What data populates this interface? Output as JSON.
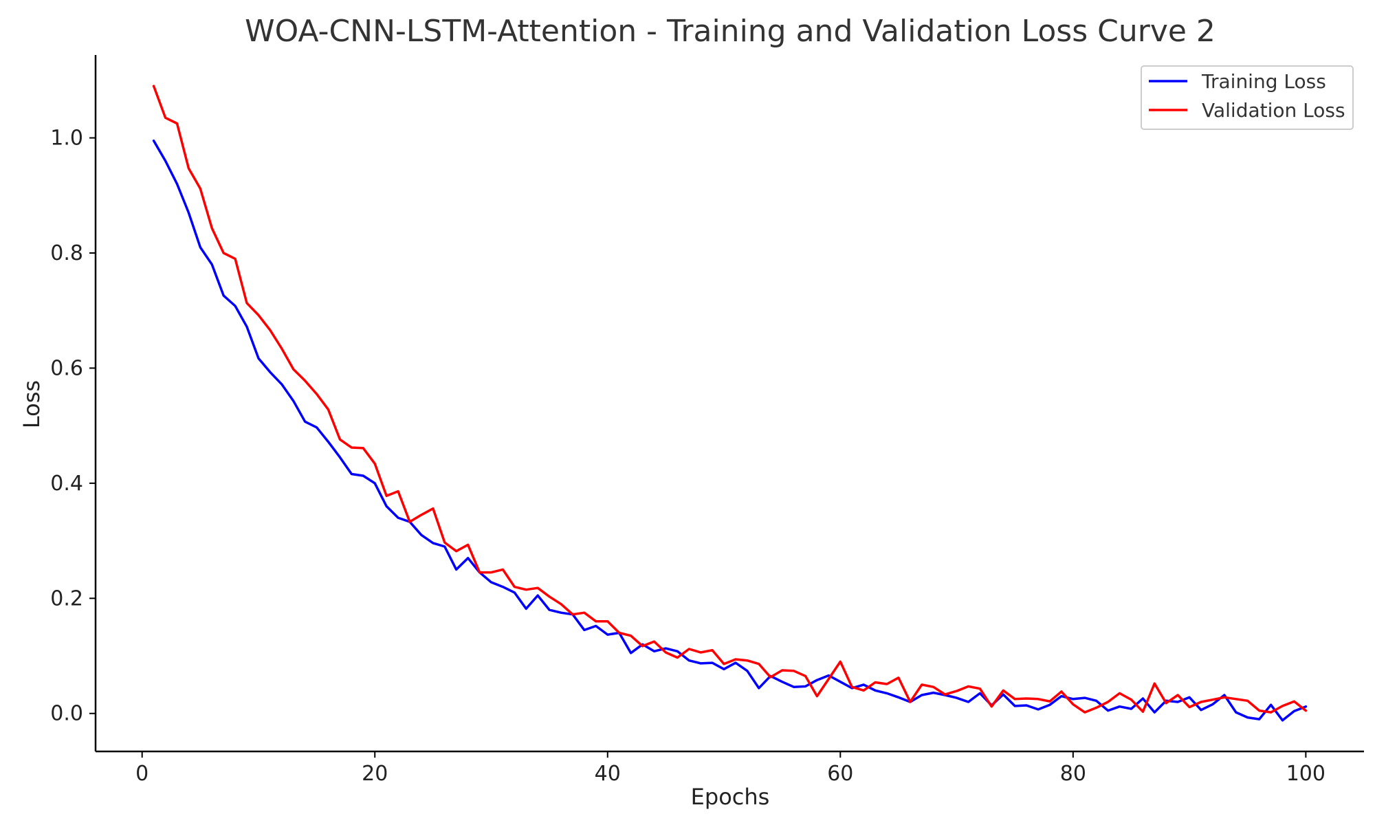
{
  "chart_data": {
    "type": "line",
    "title": "WOA-CNN-LSTM-Attention - Training and Validation Loss Curve 2",
    "xlabel": "Epochs",
    "ylabel": "Loss",
    "xlim": [
      -4,
      105
    ],
    "ylim": [
      -0.066,
      1.144
    ],
    "xticks": [
      0,
      20,
      40,
      60,
      80,
      100
    ],
    "xtick_labels": [
      "0",
      "20",
      "40",
      "60",
      "80",
      "100"
    ],
    "yticks": [
      0.0,
      0.2,
      0.4,
      0.6,
      0.8,
      1.0
    ],
    "ytick_labels": [
      "0.0",
      "0.2",
      "0.4",
      "0.6",
      "0.8",
      "1.0"
    ],
    "legend_position": "top-right",
    "grid": false,
    "x": [
      1,
      2,
      3,
      4,
      5,
      6,
      7,
      8,
      9,
      10,
      11,
      12,
      13,
      14,
      15,
      16,
      17,
      18,
      19,
      20,
      21,
      22,
      23,
      24,
      25,
      26,
      27,
      28,
      29,
      30,
      31,
      32,
      33,
      34,
      35,
      36,
      37,
      38,
      39,
      40,
      41,
      42,
      43,
      44,
      45,
      46,
      47,
      48,
      49,
      50,
      51,
      52,
      53,
      54,
      55,
      56,
      57,
      58,
      59,
      60,
      61,
      62,
      63,
      64,
      65,
      66,
      67,
      68,
      69,
      70,
      71,
      72,
      73,
      74,
      75,
      76,
      77,
      78,
      79,
      80,
      81,
      82,
      83,
      84,
      85,
      86,
      87,
      88,
      89,
      90,
      91,
      92,
      93,
      94,
      95,
      96,
      97,
      98,
      99,
      100
    ],
    "series": [
      {
        "name": "Training Loss",
        "color": "#0000ff",
        "values": [
          0.995,
          0.96,
          0.92,
          0.87,
          0.81,
          0.78,
          0.726,
          0.708,
          0.672,
          0.617,
          0.593,
          0.572,
          0.543,
          0.507,
          0.497,
          0.472,
          0.445,
          0.416,
          0.413,
          0.4,
          0.36,
          0.34,
          0.333,
          0.31,
          0.296,
          0.29,
          0.25,
          0.27,
          0.245,
          0.228,
          0.22,
          0.21,
          0.182,
          0.205,
          0.18,
          0.175,
          0.172,
          0.145,
          0.152,
          0.137,
          0.14,
          0.105,
          0.12,
          0.108,
          0.113,
          0.108,
          0.092,
          0.087,
          0.088,
          0.077,
          0.088,
          0.074,
          0.044,
          0.065,
          0.055,
          0.046,
          0.047,
          0.058,
          0.066,
          0.055,
          0.044,
          0.05,
          0.04,
          0.035,
          0.028,
          0.02,
          0.032,
          0.036,
          0.032,
          0.027,
          0.02,
          0.035,
          0.014,
          0.033,
          0.013,
          0.014,
          0.007,
          0.015,
          0.03,
          0.025,
          0.027,
          0.022,
          0.005,
          0.012,
          0.008,
          0.026,
          0.002,
          0.022,
          0.02,
          0.028,
          0.006,
          0.016,
          0.032,
          0.002,
          -0.007,
          -0.01,
          0.015,
          -0.012,
          0.004,
          0.012
        ]
      },
      {
        "name": "Validation Loss",
        "color": "#ff0000",
        "values": [
          1.09,
          1.035,
          1.025,
          0.947,
          0.912,
          0.843,
          0.8,
          0.79,
          0.713,
          0.692,
          0.666,
          0.634,
          0.598,
          0.578,
          0.555,
          0.528,
          0.476,
          0.462,
          0.461,
          0.434,
          0.378,
          0.386,
          0.333,
          0.345,
          0.356,
          0.297,
          0.282,
          0.293,
          0.245,
          0.245,
          0.25,
          0.22,
          0.215,
          0.218,
          0.203,
          0.19,
          0.172,
          0.175,
          0.16,
          0.16,
          0.14,
          0.135,
          0.117,
          0.125,
          0.106,
          0.097,
          0.112,
          0.106,
          0.11,
          0.086,
          0.094,
          0.092,
          0.086,
          0.063,
          0.075,
          0.074,
          0.065,
          0.03,
          0.06,
          0.09,
          0.046,
          0.04,
          0.054,
          0.051,
          0.062,
          0.02,
          0.05,
          0.046,
          0.033,
          0.039,
          0.047,
          0.043,
          0.012,
          0.04,
          0.025,
          0.026,
          0.025,
          0.021,
          0.038,
          0.016,
          0.002,
          0.01,
          0.02,
          0.035,
          0.024,
          0.003,
          0.052,
          0.018,
          0.032,
          0.011,
          0.02,
          0.024,
          0.028,
          0.025,
          0.022,
          0.005,
          0.002,
          0.013,
          0.021,
          0.005
        ]
      }
    ]
  }
}
